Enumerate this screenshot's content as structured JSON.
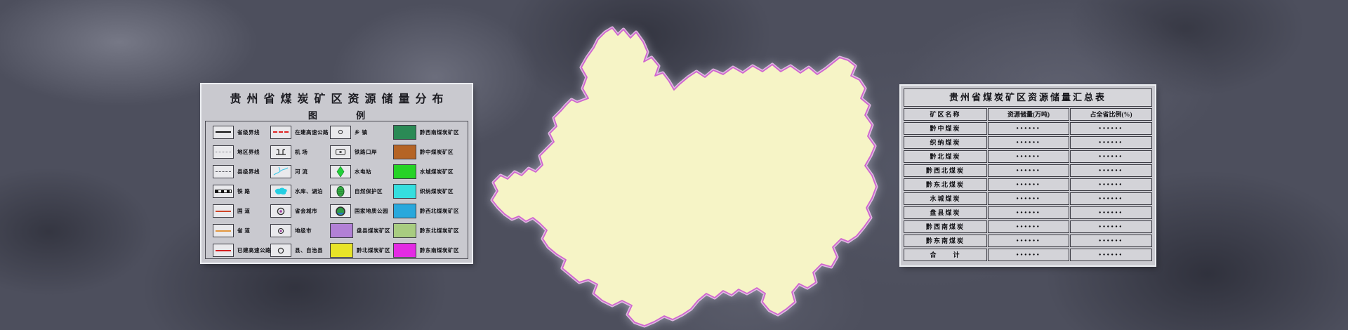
{
  "legend_panel": {
    "title": "贵州省煤炭矿区资源储量分布",
    "subtitle": "图 例",
    "rows": [
      [
        {
          "icon": "province-boundary-line",
          "label": "省级界线"
        },
        {
          "icon": "expressway-under-construction-line",
          "label": "在建高速公路"
        },
        {
          "icon": "town-symbol",
          "label": "乡  镇"
        },
        {
          "icon": "area-swatch",
          "color": "#2a8a55",
          "label": "黔西南煤炭矿区"
        }
      ],
      [
        {
          "icon": "region-boundary-line",
          "label": "地区界线"
        },
        {
          "icon": "airport-symbol",
          "label": "机  场"
        },
        {
          "icon": "railway-port-symbol",
          "label": "铁路口岸"
        },
        {
          "icon": "area-swatch",
          "color": "#b56425",
          "label": "黔中煤炭矿区"
        }
      ],
      [
        {
          "icon": "county-boundary-line",
          "label": "县级界线"
        },
        {
          "icon": "river-symbol",
          "label": "河  流"
        },
        {
          "icon": "hydropower-station-symbol",
          "label": "水电站"
        },
        {
          "icon": "area-swatch",
          "color": "#26d326",
          "label": "水城煤炭矿区"
        }
      ],
      [
        {
          "icon": "railway-line",
          "label": "铁  路"
        },
        {
          "icon": "lake-symbol",
          "label": "水库、湖泊"
        },
        {
          "icon": "nature-reserve-symbol",
          "label": "自然保护区"
        },
        {
          "icon": "area-swatch",
          "color": "#35dede",
          "label": "织纳煤炭矿区"
        }
      ],
      [
        {
          "icon": "national-road-line",
          "label": "国  道"
        },
        {
          "icon": "capital-city-symbol",
          "label": "省会城市"
        },
        {
          "icon": "geopark-symbol",
          "label": "国家地质公园"
        },
        {
          "icon": "area-swatch",
          "color": "#29a8dc",
          "label": "黔西北煤炭矿区"
        }
      ],
      [
        {
          "icon": "provincial-road-line",
          "label": "省  道"
        },
        {
          "icon": "prefecture-city-symbol",
          "label": "地级市"
        },
        {
          "icon": "area-swatch",
          "color": "#b280d6",
          "label": "盘县煤炭矿区"
        },
        {
          "icon": "area-swatch",
          "color": "#a8cc80",
          "label": "黔东北煤炭矿区"
        }
      ],
      [
        {
          "icon": "built-expressway-line",
          "label": "已建高速公路"
        },
        {
          "icon": "county-city-symbol",
          "label": "县、自治县"
        },
        {
          "icon": "area-swatch",
          "color": "#e8e428",
          "label": "黔北煤炭矿区"
        },
        {
          "icon": "area-swatch",
          "color": "#e32ae3",
          "label": "黔东南煤炭矿区"
        }
      ]
    ]
  },
  "table_panel": {
    "title": "贵州省煤炭矿区资源储量汇总表",
    "columns": [
      "矿区名称",
      "资源储量(万吨)",
      "占全省比例(%)"
    ],
    "rows": [
      {
        "name": "黔中煤炭",
        "reserve": "●●●●●●",
        "share": "●●●●●●"
      },
      {
        "name": "织纳煤炭",
        "reserve": "●●●●●●",
        "share": "●●●●●●"
      },
      {
        "name": "黔北煤炭",
        "reserve": "●●●●●●",
        "share": "●●●●●●"
      },
      {
        "name": "黔西北煤炭",
        "reserve": "●●●●●●",
        "share": "●●●●●●"
      },
      {
        "name": "黔东北煤炭",
        "reserve": "●●●●●●",
        "share": "●●●●●●"
      },
      {
        "name": "水城煤炭",
        "reserve": "●●●●●●",
        "share": "●●●●●●"
      },
      {
        "name": "盘县煤炭",
        "reserve": "●●●●●●",
        "share": "●●●●●●"
      },
      {
        "name": "黔西南煤炭",
        "reserve": "●●●●●●",
        "share": "●●●●●●"
      },
      {
        "name": "黔东南煤炭",
        "reserve": "●●●●●●",
        "share": "●●●●●●"
      },
      {
        "name": "合　　计",
        "reserve": "●●●●●●",
        "share": "●●●●●●"
      }
    ]
  },
  "map": {
    "province": "贵州省",
    "boundary_color": "#cf66cf",
    "palette": {
      "黔西南煤炭矿区": "#2a8a55",
      "黔中煤炭矿区": "#b56425",
      "水城煤炭矿区": "#26d326",
      "织纳煤炭矿区": "#35dede",
      "黔西北煤炭矿区": "#29a8dc",
      "盘县煤炭矿区": "#b280d6",
      "黔东北煤炭矿区": "#a8cc80",
      "黔北煤炭矿区": "#e8e428",
      "黔东南煤炭矿区": "#e32ae3"
    }
  }
}
